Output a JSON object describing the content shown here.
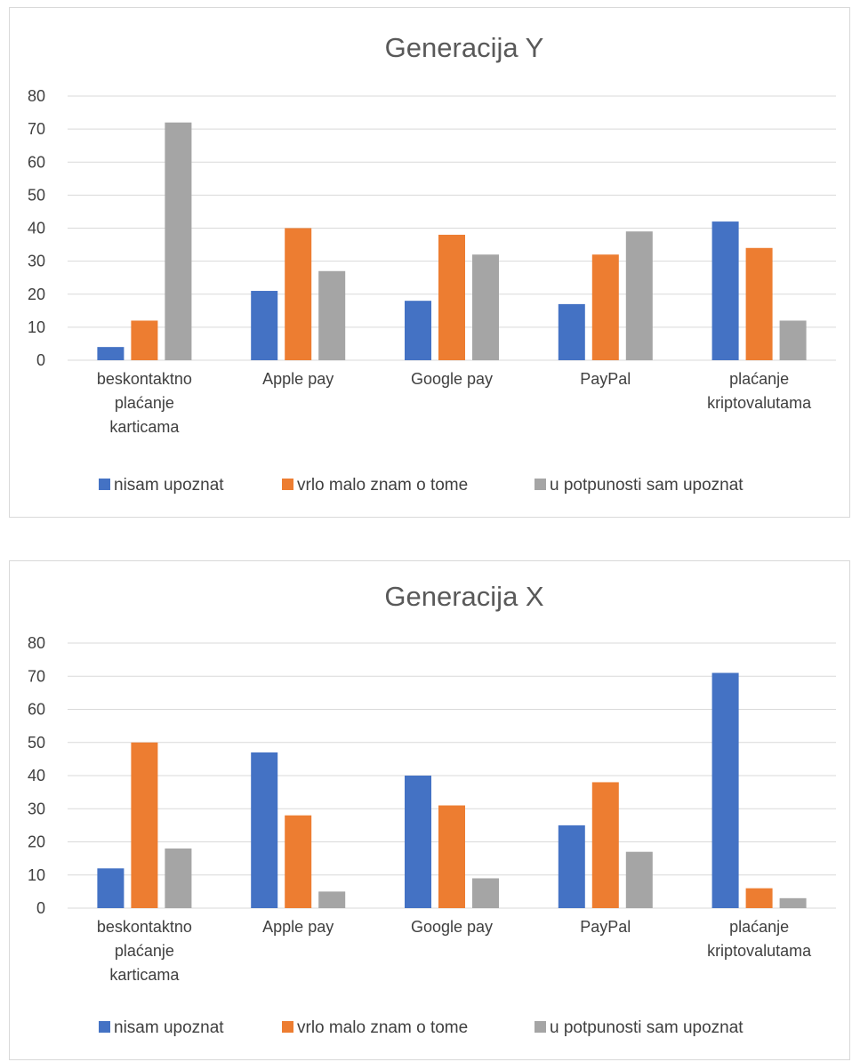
{
  "chart_data": [
    {
      "type": "bar",
      "title": "Generacija Y",
      "categories": [
        [
          "beskontaktno",
          "plaćanje",
          "karticama"
        ],
        [
          "Apple pay"
        ],
        [
          "Google pay"
        ],
        [
          "PayPal"
        ],
        [
          "plaćanje",
          "kriptovalutama"
        ]
      ],
      "series": [
        {
          "name": "nisam upoznat",
          "color": "#4472C4",
          "values": [
            4,
            21,
            18,
            17,
            42
          ]
        },
        {
          "name": "vrlo malo znam o tome",
          "color": "#ED7D31",
          "values": [
            12,
            40,
            38,
            32,
            34
          ]
        },
        {
          "name": "u potpunosti sam upoznat",
          "color": "#A5A5A5",
          "values": [
            72,
            27,
            32,
            39,
            12
          ]
        }
      ],
      "yticks": [
        "0",
        "10",
        "20",
        "30",
        "40",
        "50",
        "60",
        "70",
        "80"
      ],
      "ylim": [
        0,
        80
      ],
      "grid": true,
      "legend": "bottom"
    },
    {
      "type": "bar",
      "title": "Generacija X",
      "categories": [
        [
          "beskontaktno",
          "plaćanje",
          "karticama"
        ],
        [
          "Apple pay"
        ],
        [
          "Google pay"
        ],
        [
          "PayPal"
        ],
        [
          "plaćanje",
          "kriptovalutama"
        ]
      ],
      "series": [
        {
          "name": "nisam upoznat",
          "color": "#4472C4",
          "values": [
            12,
            47,
            40,
            25,
            71
          ]
        },
        {
          "name": "vrlo malo znam o tome",
          "color": "#ED7D31",
          "values": [
            50,
            28,
            31,
            38,
            6
          ]
        },
        {
          "name": "u potpunosti sam upoznat",
          "color": "#A5A5A5",
          "values": [
            18,
            5,
            9,
            17,
            3
          ]
        }
      ],
      "yticks": [
        "0",
        "10",
        "20",
        "30",
        "40",
        "50",
        "60",
        "70",
        "80"
      ],
      "ylim": [
        0,
        80
      ],
      "grid": true,
      "legend": "bottom"
    }
  ]
}
